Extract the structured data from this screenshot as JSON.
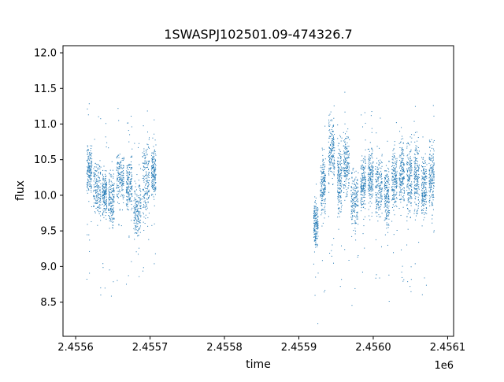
{
  "chart_data": {
    "type": "scatter",
    "title": "1SWASPJ102501.09-474326.7",
    "xlabel": "time",
    "ylabel": "flux",
    "x_offset_label": "1e6",
    "x_tick_labels": [
      "2.4556",
      "2.4557",
      "2.4558",
      "2.4559",
      "2.4560",
      "2.4561"
    ],
    "x_tick_values": [
      2455600,
      2455700,
      2455800,
      2455900,
      2456000,
      2456100
    ],
    "y_tick_labels": [
      "8.5",
      "9.0",
      "9.5",
      "10.0",
      "10.5",
      "11.0",
      "11.5",
      "12.0"
    ],
    "y_tick_values": [
      8.5,
      9.0,
      9.5,
      10.0,
      10.5,
      11.0,
      11.5,
      12.0
    ],
    "xlim": [
      2455583,
      2456108
    ],
    "ylim": [
      8.02,
      12.1
    ],
    "grid": false,
    "legend": "none",
    "point_color": "#1f77b4",
    "series": [
      {
        "segments": [
          {
            "x0": 2455615,
            "x1": 2455622,
            "center": 10.35,
            "spread": 0.28
          },
          {
            "x0": 2455624,
            "x1": 2455634,
            "center": 10.1,
            "spread": 0.3
          },
          {
            "x0": 2455636,
            "x1": 2455642,
            "center": 10.0,
            "spread": 0.28
          },
          {
            "x0": 2455644,
            "x1": 2455652,
            "center": 9.95,
            "spread": 0.3
          },
          {
            "x0": 2455655,
            "x1": 2455665,
            "center": 10.25,
            "spread": 0.3
          },
          {
            "x0": 2455668,
            "x1": 2455676,
            "center": 10.15,
            "spread": 0.32
          },
          {
            "x0": 2455678,
            "x1": 2455688,
            "center": 9.8,
            "spread": 0.35
          },
          {
            "x0": 2455690,
            "x1": 2455699,
            "center": 10.2,
            "spread": 0.45
          },
          {
            "x0": 2455702,
            "x1": 2455708,
            "center": 10.3,
            "spread": 0.3
          },
          {
            "x0": 2455920,
            "x1": 2455926,
            "center": 9.6,
            "spread": 0.25
          },
          {
            "x0": 2455929,
            "x1": 2455936,
            "center": 10.15,
            "spread": 0.4
          },
          {
            "x0": 2455940,
            "x1": 2455948,
            "center": 10.6,
            "spread": 0.35
          },
          {
            "x0": 2455952,
            "x1": 2455958,
            "center": 10.2,
            "spread": 0.4
          },
          {
            "x0": 2455960,
            "x1": 2455968,
            "center": 10.45,
            "spread": 0.35
          },
          {
            "x0": 2455970,
            "x1": 2455980,
            "center": 9.95,
            "spread": 0.35
          },
          {
            "x0": 2455983,
            "x1": 2455990,
            "center": 10.2,
            "spread": 0.35
          },
          {
            "x0": 2455993,
            "x1": 2456000,
            "center": 10.25,
            "spread": 0.35
          },
          {
            "x0": 2456003,
            "x1": 2456012,
            "center": 10.1,
            "spread": 0.35
          },
          {
            "x0": 2456015,
            "x1": 2456022,
            "center": 10.0,
            "spread": 0.35
          },
          {
            "x0": 2456025,
            "x1": 2456032,
            "center": 10.2,
            "spread": 0.35
          },
          {
            "x0": 2456035,
            "x1": 2456042,
            "center": 10.3,
            "spread": 0.4
          },
          {
            "x0": 2456045,
            "x1": 2456052,
            "center": 10.2,
            "spread": 0.4
          },
          {
            "x0": 2456055,
            "x1": 2456062,
            "center": 10.25,
            "spread": 0.4
          },
          {
            "x0": 2456065,
            "x1": 2456072,
            "center": 10.1,
            "spread": 0.35
          },
          {
            "x0": 2456075,
            "x1": 2456082,
            "center": 10.3,
            "spread": 0.45
          }
        ]
      }
    ]
  }
}
